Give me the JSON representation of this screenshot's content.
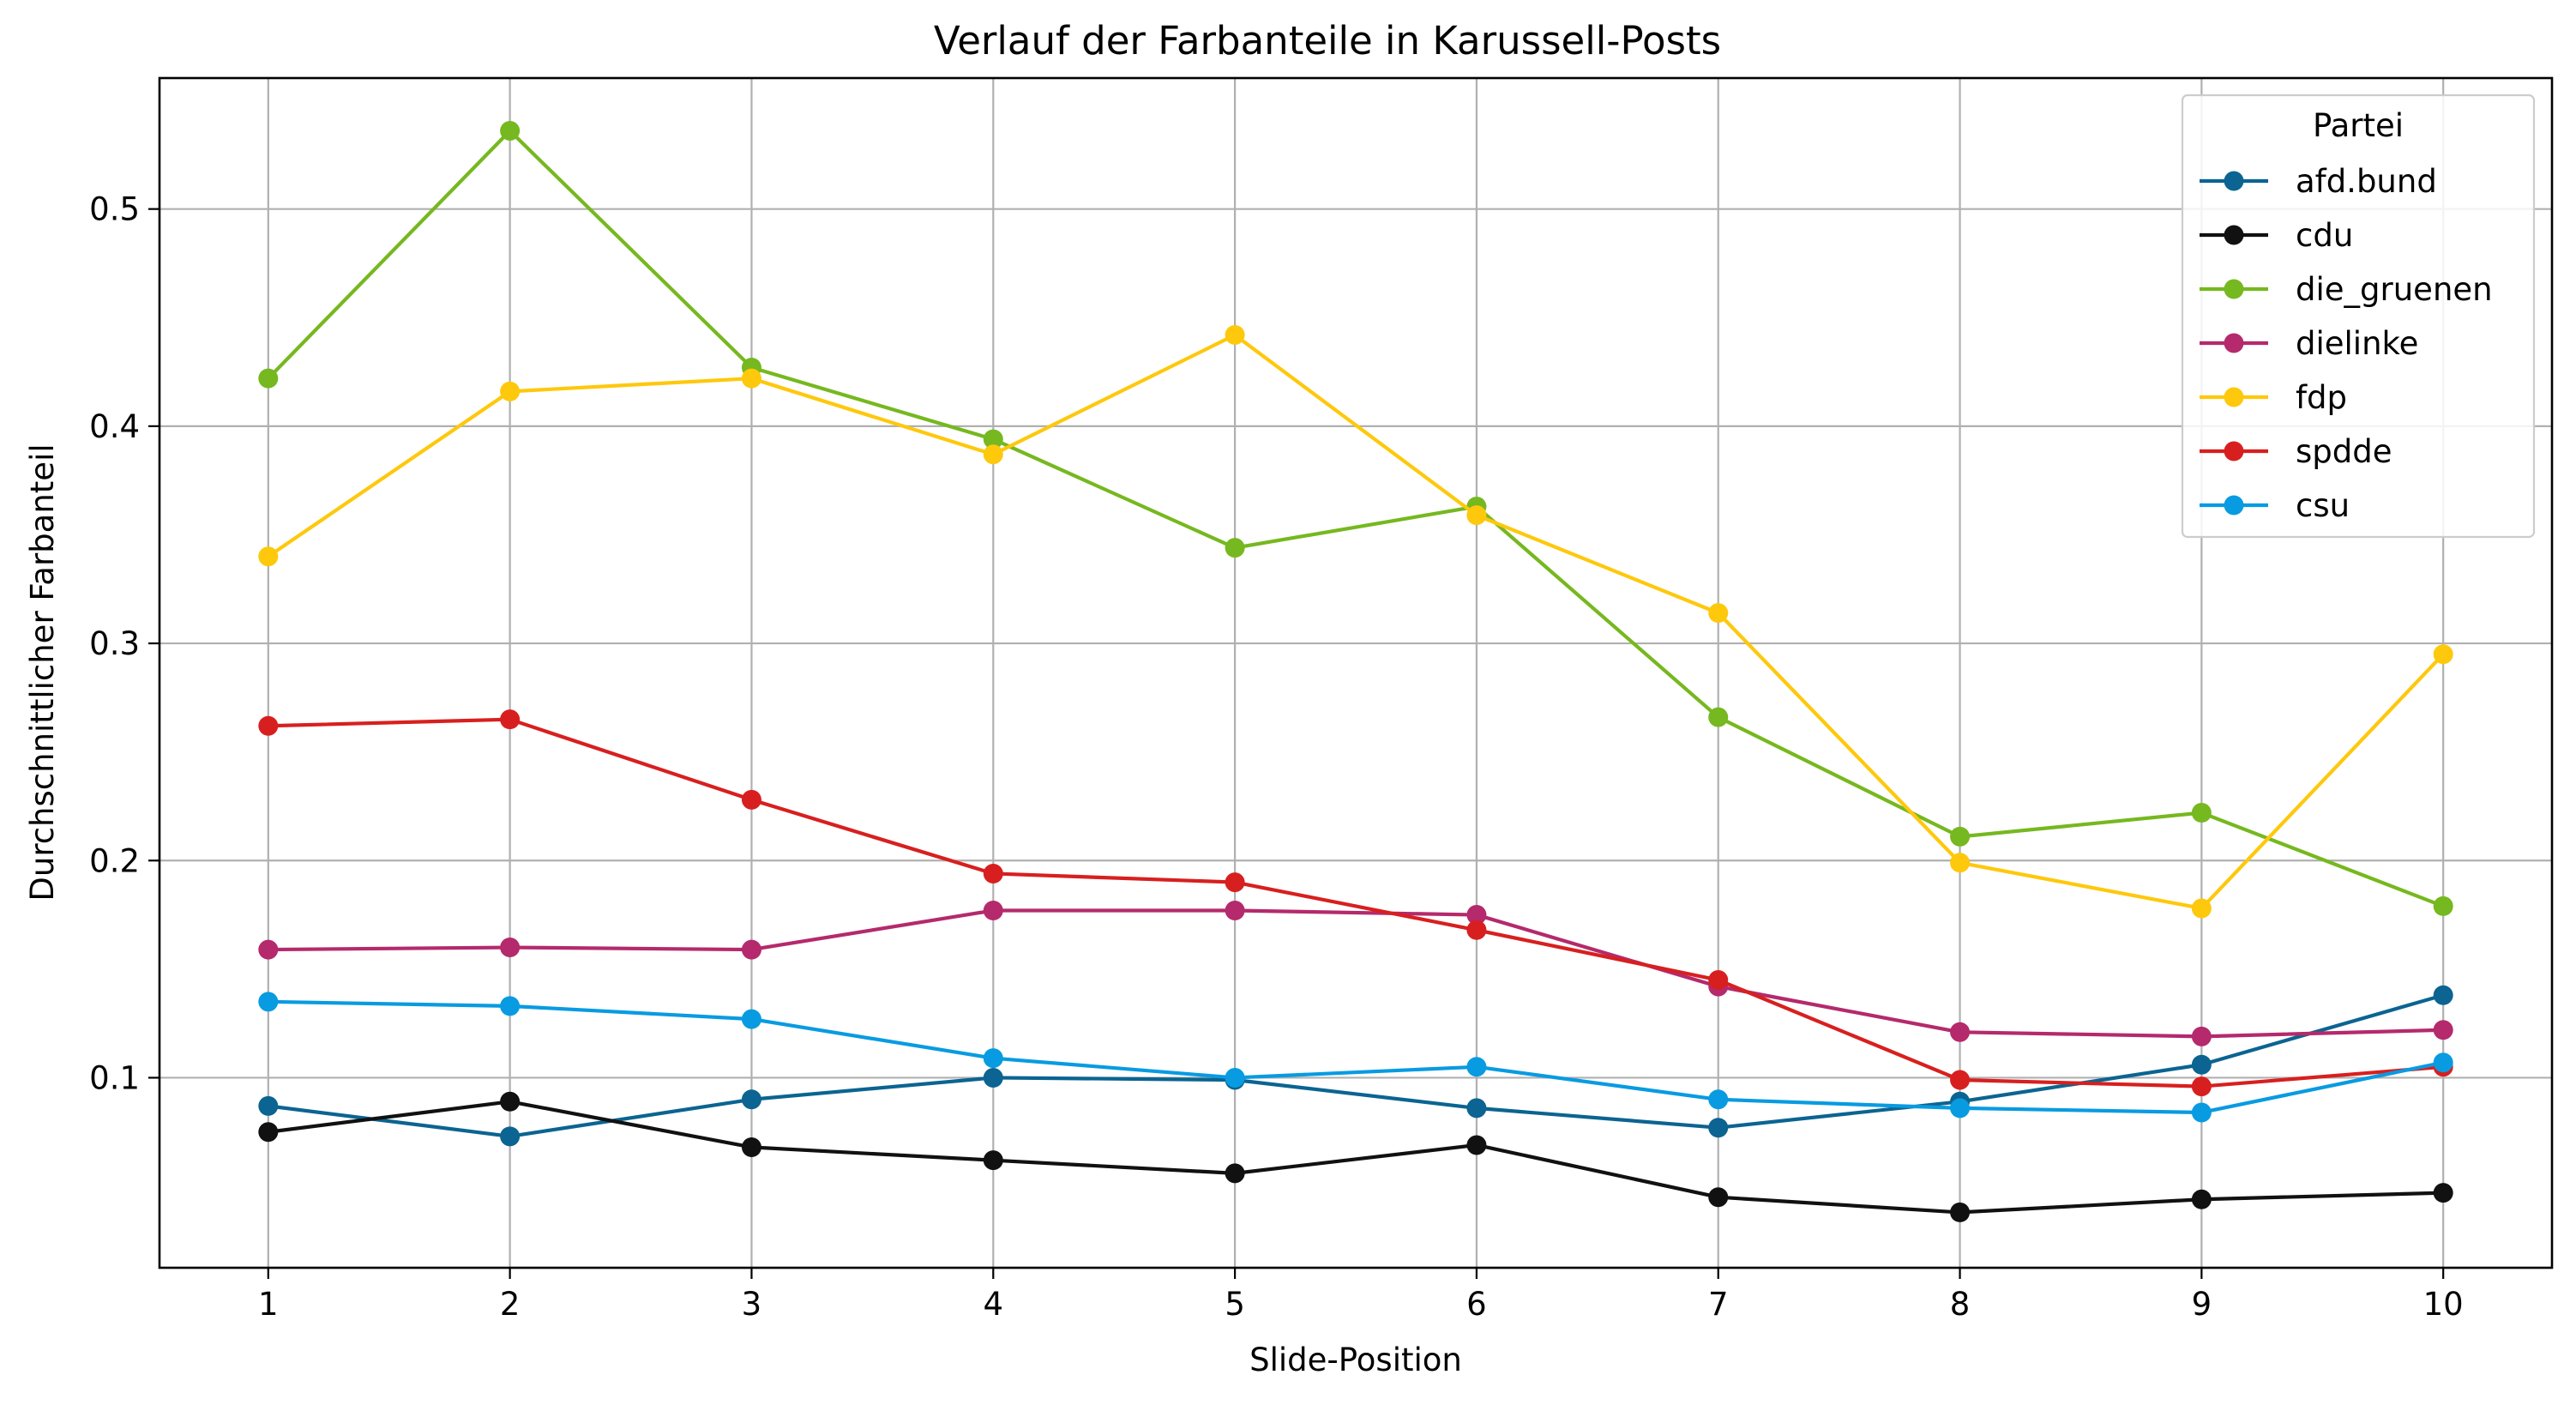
{
  "chart_data": {
    "type": "line",
    "title": "Verlauf der Farbanteile in Karussell-Posts",
    "xlabel": "Slide-Position",
    "ylabel": "Durchschnittlicher Farbanteil",
    "x": [
      1,
      2,
      3,
      4,
      5,
      6,
      7,
      8,
      9,
      10
    ],
    "x_ticks": [
      "1",
      "2",
      "3",
      "4",
      "5",
      "6",
      "7",
      "8",
      "9",
      "10"
    ],
    "y_ticks": [
      "0.1",
      "0.2",
      "0.3",
      "0.4",
      "0.5"
    ],
    "xlim": [
      0.55,
      10.45
    ],
    "ylim": [
      0.0125,
      0.5603
    ],
    "grid": true,
    "legend": {
      "title": "Partei",
      "placement": "top-right"
    },
    "series": [
      {
        "name": "afd.bund",
        "color": "#0b6491",
        "values": [
          0.087,
          0.073,
          0.09,
          0.1,
          0.099,
          0.086,
          0.077,
          0.089,
          0.106,
          0.138
        ]
      },
      {
        "name": "cdu",
        "color": "#111111",
        "values": [
          0.075,
          0.089,
          0.068,
          0.062,
          0.056,
          0.069,
          0.045,
          0.038,
          0.044,
          0.047
        ]
      },
      {
        "name": "die_gruenen",
        "color": "#76b81f",
        "values": [
          0.422,
          0.536,
          0.427,
          0.394,
          0.344,
          0.363,
          0.266,
          0.211,
          0.222,
          0.179
        ]
      },
      {
        "name": "dielinke",
        "color": "#b42a6c",
        "values": [
          0.159,
          0.16,
          0.159,
          0.177,
          0.177,
          0.175,
          0.142,
          0.121,
          0.119,
          0.122
        ]
      },
      {
        "name": "fdp",
        "color": "#fec80c",
        "values": [
          0.34,
          0.416,
          0.422,
          0.387,
          0.442,
          0.359,
          0.314,
          0.199,
          0.178,
          0.295
        ]
      },
      {
        "name": "spdde",
        "color": "#d81f1f",
        "values": [
          0.262,
          0.265,
          0.228,
          0.194,
          0.19,
          0.168,
          0.145,
          0.099,
          0.096,
          0.105
        ]
      },
      {
        "name": "csu",
        "color": "#089be1",
        "values": [
          0.135,
          0.133,
          0.127,
          0.109,
          0.1,
          0.105,
          0.09,
          0.086,
          0.084,
          0.107
        ]
      }
    ]
  }
}
